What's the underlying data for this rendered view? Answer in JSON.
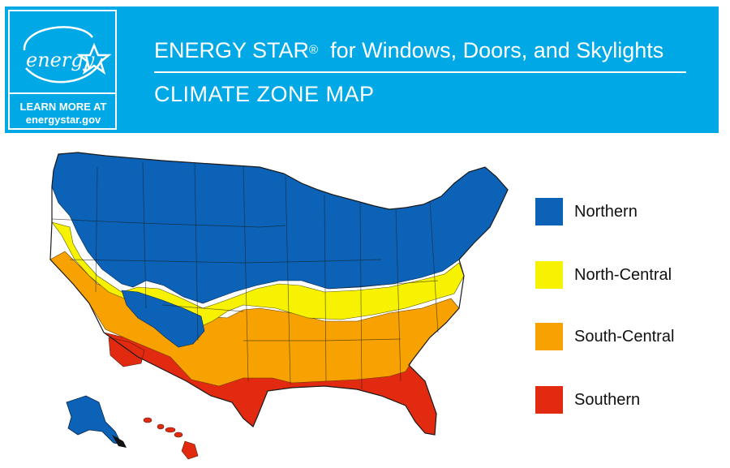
{
  "header": {
    "title_main": "ENERGY STAR",
    "title_reg": "®",
    "title_rest": "for Windows, Doors, and Skylights",
    "subtitle": "CLIMATE ZONE MAP",
    "logo_text": "energy",
    "learn_more": "LEARN MORE AT",
    "website": "energystar.gov"
  },
  "colors": {
    "header_bg": "#00a9e6",
    "northern": "#0b62b6",
    "north_central": "#f7f200",
    "south_central": "#f7a200",
    "southern": "#e12a10"
  },
  "legend": [
    {
      "label": "Northern",
      "color": "#0b62b6"
    },
    {
      "label": "North-Central",
      "color": "#f7f200"
    },
    {
      "label": "South-Central",
      "color": "#f7a200"
    },
    {
      "label": "Southern",
      "color": "#e12a10"
    }
  ]
}
